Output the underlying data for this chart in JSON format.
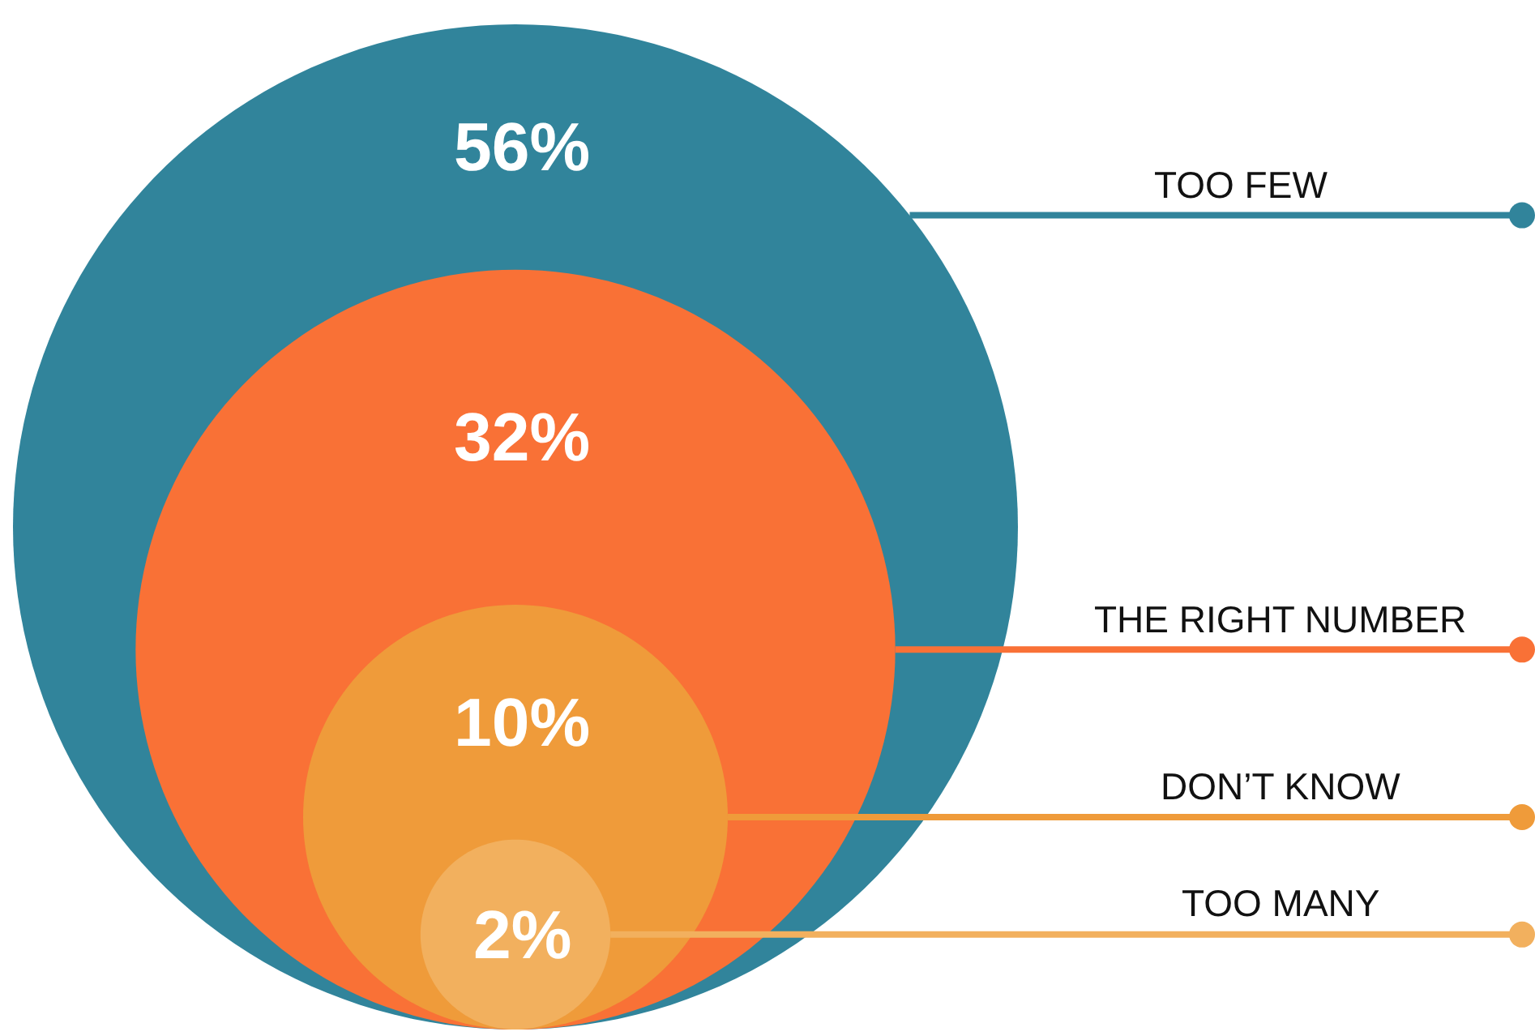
{
  "chart_data": {
    "type": "other",
    "categories": [
      "TOO FEW",
      "THE RIGHT NUMBER",
      "DON’T KNOW",
      "TOO MANY"
    ],
    "values": [
      56,
      32,
      10,
      2
    ],
    "colors": [
      "#31849b",
      "#f97136",
      "#ef9b3a",
      "#f2b05e"
    ],
    "value_labels": [
      "56%",
      "32%",
      "10%",
      "2%"
    ]
  }
}
